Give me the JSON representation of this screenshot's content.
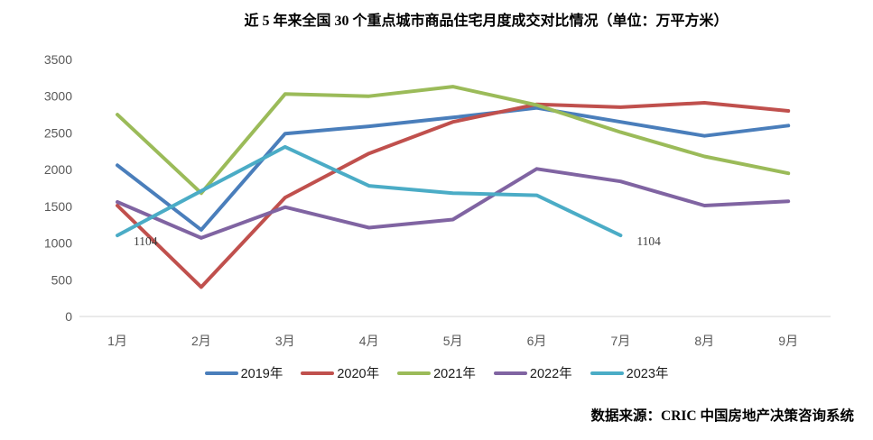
{
  "source": "数据来源：CRIC 中国房地产决策咨询系统",
  "chart_data": {
    "type": "line",
    "title": "近 5 年来全国 30 个重点城市商品住宅月度成交对比情况（单位：万平方米）",
    "categories": [
      "1月",
      "2月",
      "3月",
      "4月",
      "5月",
      "6月",
      "7月",
      "8月",
      "9月"
    ],
    "series": [
      {
        "name": "2019年",
        "color": "#4A7EBB",
        "values": [
          2060,
          1180,
          2490,
          2590,
          2710,
          2840,
          2650,
          2460,
          2600
        ]
      },
      {
        "name": "2020年",
        "color": "#C0504D",
        "values": [
          1510,
          400,
          1620,
          2220,
          2650,
          2890,
          2850,
          2910,
          2800
        ]
      },
      {
        "name": "2021年",
        "color": "#9BBB59",
        "values": [
          2750,
          1680,
          3030,
          3000,
          3130,
          2880,
          2510,
          2180,
          1950
        ]
      },
      {
        "name": "2022年",
        "color": "#8064A2",
        "values": [
          1560,
          1070,
          1490,
          1210,
          1320,
          2010,
          1840,
          1510,
          1570
        ]
      },
      {
        "name": "2023年",
        "color": "#4BACC6",
        "values": [
          1104,
          1710,
          2310,
          1780,
          1680,
          1650,
          1104
        ]
      }
    ],
    "ylim": [
      0,
      3500
    ],
    "yticks": [
      0,
      500,
      1000,
      1500,
      2000,
      2500,
      3000,
      3500
    ],
    "grid": false,
    "legend_position": "bottom",
    "annotations": [
      {
        "text": "1104",
        "series": "2023年",
        "month_index": 0
      },
      {
        "text": "1104",
        "series": "2023年",
        "month_index": 6
      }
    ],
    "axis_label_color": "#595959",
    "baseline_color": "#D6D6D6",
    "annotation_color": "#3F3F3F"
  }
}
